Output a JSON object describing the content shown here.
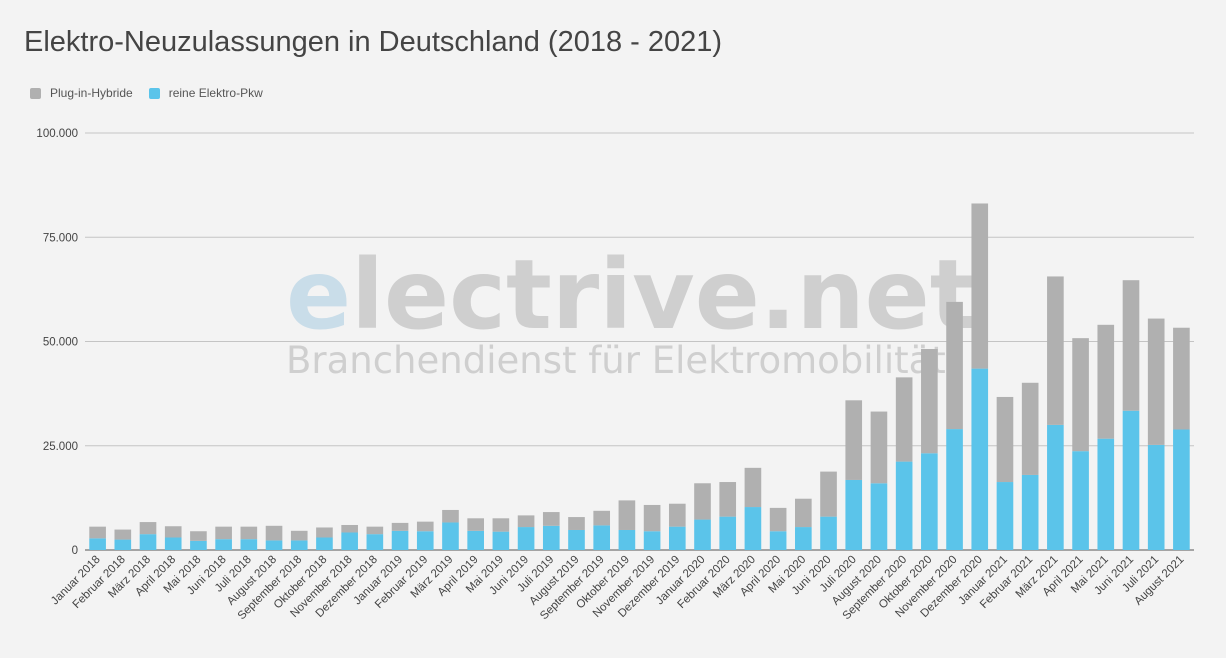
{
  "chart_data": {
    "type": "bar",
    "stacked": true,
    "title": "Elektro-Neuzulassungen in Deutschland (2018 - 2021)",
    "xlabel": "",
    "ylabel": "",
    "ylim": [
      0,
      100000
    ],
    "yticks": [
      0,
      25000,
      50000,
      75000,
      100000
    ],
    "ytick_labels": [
      "0",
      "25.000",
      "50.000",
      "75.000",
      "100.000"
    ],
    "grid": true,
    "legend_position": "top-left",
    "categories": [
      "Januar 2018",
      "Februar 2018",
      "März 2018",
      "April 2018",
      "Mai 2018",
      "Juni 2018",
      "Juli 2018",
      "August 2018",
      "September 2018",
      "Oktober 2018",
      "November 2018",
      "Dezember 2018",
      "Januar 2019",
      "Februar 2019",
      "März 2019",
      "April 2019",
      "Mai 2019",
      "Juni 2019",
      "Juli 2019",
      "August 2019",
      "September 2019",
      "Oktober 2019",
      "November 2019",
      "Dezember 2019",
      "Januar 2020",
      "Februar 2020",
      "März 2020",
      "April 2020",
      "Mai 2020",
      "Juni 2020",
      "Juli 2020",
      "August 2020",
      "September 2020",
      "Oktober 2020",
      "November 2020",
      "Dezember 2020",
      "Januar 2021",
      "Februar 2021",
      "März 2021",
      "April 2021",
      "Mai 2021",
      "Juni 2021",
      "Juli 2021",
      "August 2021"
    ],
    "series": [
      {
        "name": "reine Elektro-Pkw",
        "color": "#5bc4ea",
        "values": [
          2800,
          2500,
          3800,
          3000,
          2200,
          2600,
          2600,
          2300,
          2300,
          3000,
          4200,
          3800,
          4600,
          4500,
          6600,
          4600,
          4400,
          5500,
          5800,
          4800,
          5900,
          4800,
          4500,
          5600,
          7300,
          8000,
          10300,
          4500,
          5500,
          8000,
          16800,
          16000,
          21200,
          23200,
          29000,
          43500,
          16300,
          18000,
          30000,
          23700,
          26700,
          33400,
          25200,
          28900
        ]
      },
      {
        "name": "Plug-in-Hybride",
        "color": "#b0b0b0",
        "values": [
          2800,
          2400,
          2900,
          2700,
          2300,
          3000,
          3000,
          3500,
          2300,
          2400,
          1800,
          1800,
          1900,
          2300,
          3000,
          3000,
          3200,
          2800,
          3300,
          3100,
          3500,
          7100,
          6300,
          5500,
          8700,
          8300,
          9400,
          5600,
          6800,
          10800,
          19100,
          17200,
          20200,
          25000,
          30500,
          39600,
          20400,
          22100,
          35600,
          27100,
          27300,
          31300,
          30300,
          24400
        ]
      }
    ]
  },
  "watermark": {
    "main_e": "e",
    "main_rest": "lectrive.net",
    "subtitle": "Branchendienst für Elektromobilität"
  }
}
